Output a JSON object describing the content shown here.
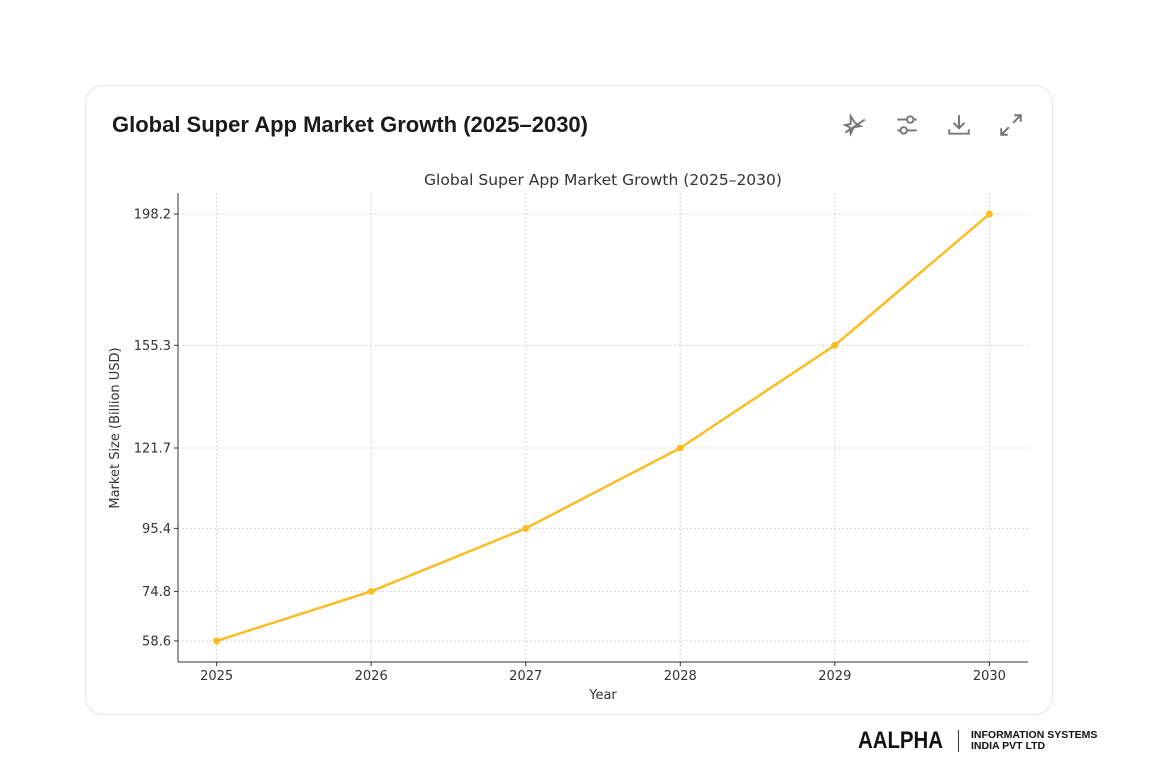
{
  "card": {
    "title": "Global Super App Market Growth (2025–2030)",
    "tools": [
      {
        "icon": "pin-off-icon"
      },
      {
        "icon": "sliders-icon"
      },
      {
        "icon": "download-icon"
      },
      {
        "icon": "expand-icon"
      }
    ]
  },
  "brand": {
    "name": "AALPHA",
    "line1": "INFORMATION SYSTEMS",
    "line2": "INDIA PVT LTD"
  },
  "chart_data": {
    "type": "line",
    "title": "Global Super App Market Growth (2025–2030)",
    "xlabel": "Year",
    "ylabel": "Market Size (Billion USD)",
    "x": [
      2025,
      2026,
      2027,
      2028,
      2029,
      2030
    ],
    "x_tick_labels": [
      "2025",
      "2026",
      "2027",
      "2028",
      "2029",
      "2030"
    ],
    "y_ticks": [
      58.6,
      74.8,
      95.4,
      121.7,
      155.3,
      198.2
    ],
    "y_tick_labels": [
      "58.6",
      "74.8",
      "95.4",
      "121.7",
      "155.3",
      "198.2"
    ],
    "series": [
      {
        "values": [
          58.6,
          74.8,
          95.4,
          121.7,
          155.3,
          198.2
        ],
        "color": "#fbbc24"
      }
    ],
    "xlim": [
      2024.75,
      2030.25
    ],
    "ylim": [
      51.7,
      205.1
    ],
    "grid": true
  }
}
